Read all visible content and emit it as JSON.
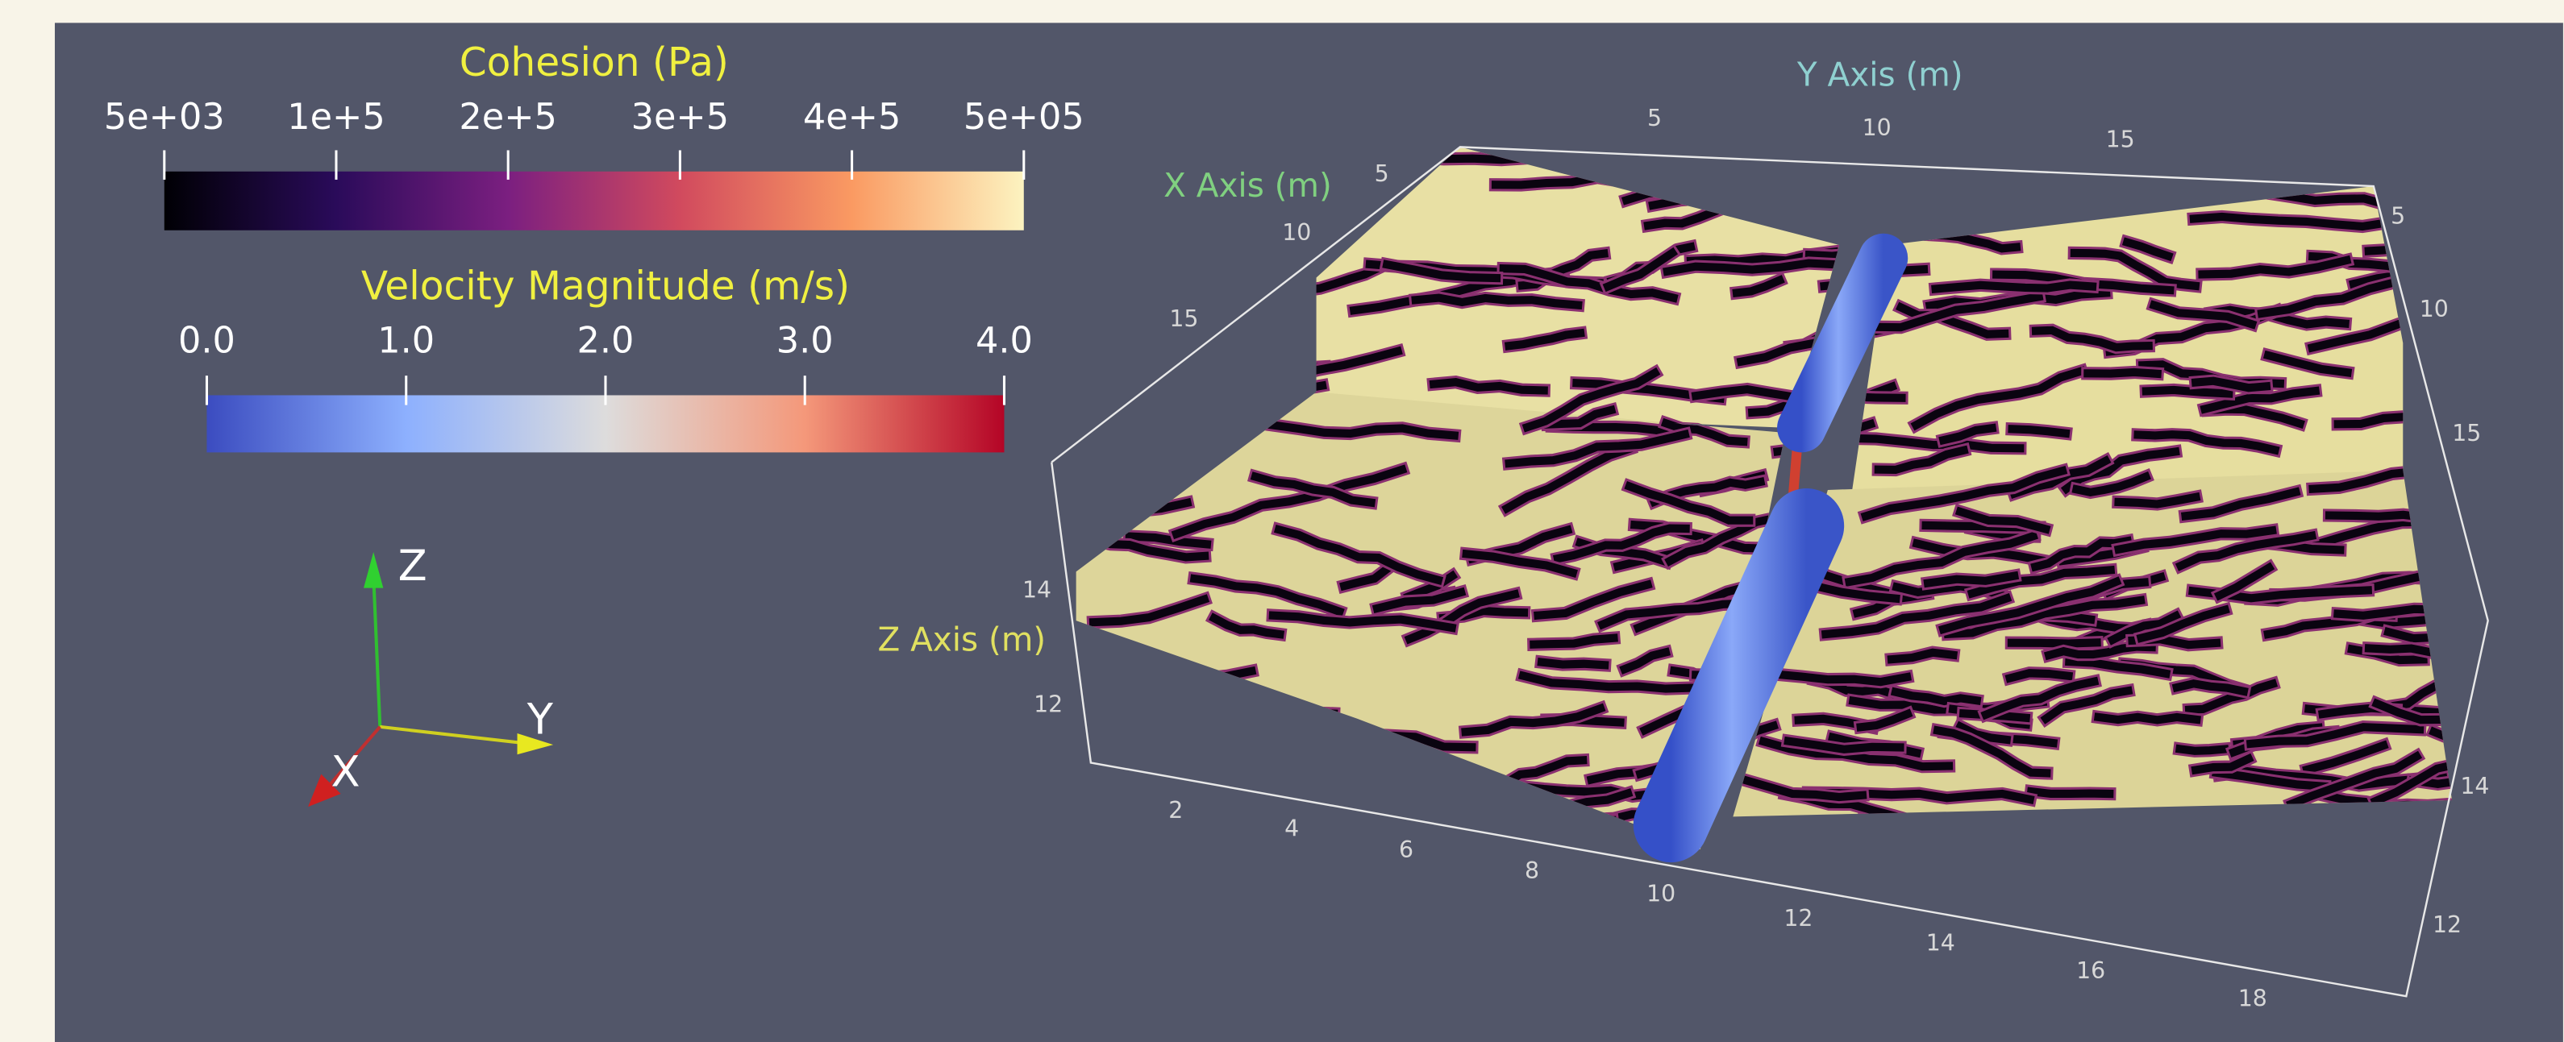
{
  "legends": [
    {
      "title": "Cohesion (Pa)",
      "ticks": [
        "5e+03",
        "1e+5",
        "2e+5",
        "3e+5",
        "4e+5",
        "5e+05"
      ]
    },
    {
      "title": "Velocity Magnitude (m/s)",
      "ticks": [
        "0.0",
        "1.0",
        "2.0",
        "3.0",
        "4.0"
      ]
    }
  ],
  "axes": {
    "y": {
      "title": "Y Axis (m)",
      "ticks_top": [
        "5",
        "10",
        "15"
      ],
      "ticks_front": [
        "2",
        "4",
        "6",
        "8",
        "10",
        "12",
        "14",
        "16",
        "18"
      ]
    },
    "x": {
      "title": "X Axis (m)",
      "ticks_left": [
        "5",
        "10",
        "15"
      ],
      "ticks_right": [
        "5",
        "10",
        "15"
      ]
    },
    "z": {
      "title": "Z Axis (m)",
      "ticks_left": [
        "14",
        "12"
      ],
      "ticks_right": [
        "14",
        "12"
      ]
    }
  },
  "orientation": {
    "z": "Z",
    "y": "Y",
    "x": "X"
  }
}
